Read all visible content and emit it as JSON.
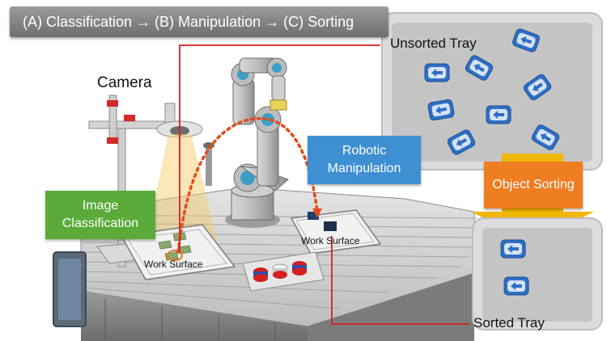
{
  "banner": {
    "text": "(A) Classification → (B) Manipulation → (C) Sorting"
  },
  "labels": {
    "camera": "Camera",
    "unsorted_tray": "Unsorted Tray",
    "sorted_tray": "Sorted Tray",
    "work_surface_left": "Work Surface",
    "work_surface_right": "Work Surface"
  },
  "boxes": {
    "image_classification": "Image Classification",
    "robotic_manipulation": "Robotic Manipulation",
    "object_sorting": "Object Sorting"
  },
  "colors": {
    "green": "#5aab3a",
    "blue": "#3f8fd3",
    "orange": "#ef7d22",
    "arrow_yellow": "#f2b705",
    "connector_red": "#d42020",
    "tray_gray": "#c8c8c8",
    "token_blue": "#2f6fc5"
  },
  "icons": {
    "token": "left-arrow-icon"
  }
}
